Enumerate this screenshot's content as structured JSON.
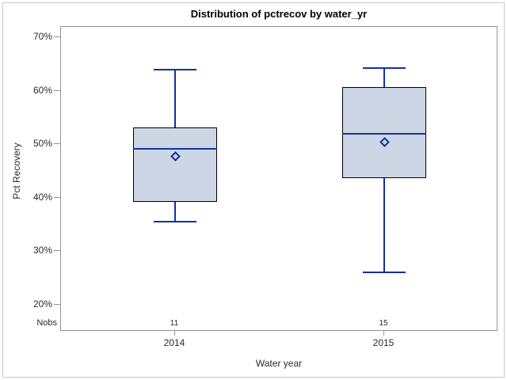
{
  "title": "Distribution of pctrecov by water_yr",
  "y_axis": {
    "label": "Pct Recovery",
    "ticks": [
      {
        "label": "70%",
        "value": 70
      },
      {
        "label": "60%",
        "value": 60
      },
      {
        "label": "50%",
        "value": 50
      },
      {
        "label": "40%",
        "value": 40
      },
      {
        "label": "30%",
        "value": 30
      },
      {
        "label": "20%",
        "value": 20
      }
    ]
  },
  "x_axis": {
    "label": "Water year",
    "categories": [
      "2014",
      "2015"
    ]
  },
  "nobs": {
    "label": "Nobs",
    "values": [
      "11",
      "15"
    ]
  },
  "colors": {
    "box_fill": "#ccd6e5",
    "box_border": "#000000",
    "line_blue": "#11339b",
    "frame_gray": "#929699",
    "outer_border_gray": "#c6c9cc",
    "text": "#2b2b2b",
    "title_text": "#000000"
  },
  "chart_data": {
    "type": "boxplot",
    "title": "Distribution of pctrecov by water_yr",
    "xlabel": "Water year",
    "ylabel": "Pct Recovery",
    "ylim": [
      18,
      72
    ],
    "y_tick_values": [
      20,
      30,
      40,
      50,
      60,
      70
    ],
    "y_tick_format": "percent",
    "grid": false,
    "categories": [
      "2014",
      "2015"
    ],
    "series": [
      {
        "category": "2014",
        "n_obs": 11,
        "whisker_low": 35.5,
        "q1": 39.3,
        "median": 49.2,
        "mean": 47.7,
        "q3": 53.1,
        "whisker_high": 63.9
      },
      {
        "category": "2015",
        "n_obs": 15,
        "whisker_low": 26.0,
        "q1": 43.6,
        "median": 52.0,
        "mean": 50.4,
        "q3": 60.7,
        "whisker_high": 64.3
      }
    ]
  }
}
